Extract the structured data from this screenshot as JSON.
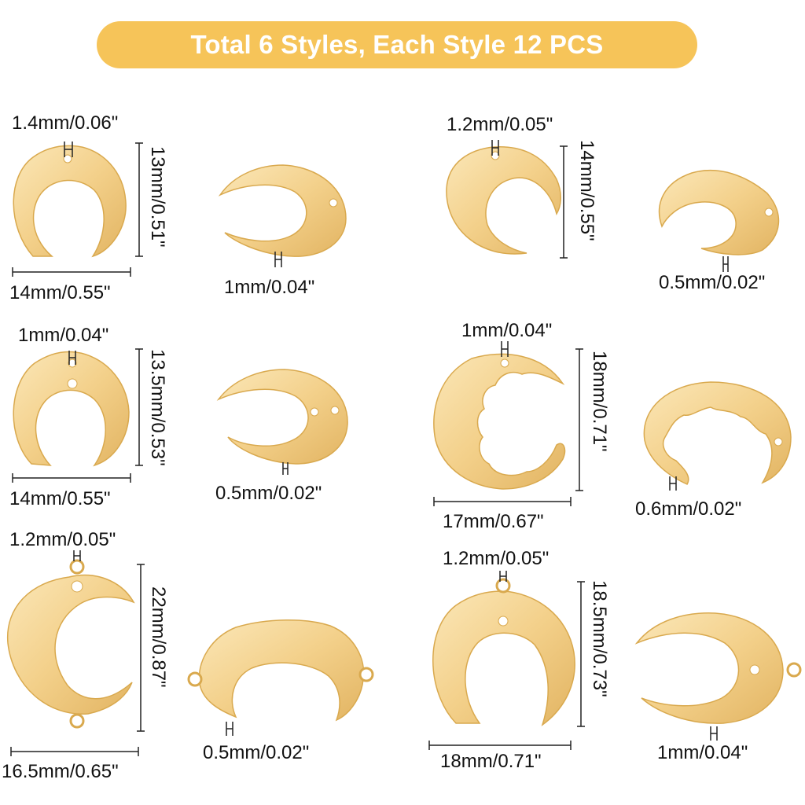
{
  "banner": {
    "title": "Total 6 Styles, Each Style 12 PCS"
  },
  "colors": {
    "banner": "#f6c459",
    "gold_light": "#f7dca2",
    "gold_dark": "#d9a94e",
    "line": "#222222"
  },
  "styles": [
    {
      "hole": "1.4mm/0.06\"",
      "height": "13mm/0.51\"",
      "width": "14mm/0.55\"",
      "thickness": "1mm/0.04\""
    },
    {
      "hole": "1.2mm/0.05\"",
      "height": "14mm/0.55\"",
      "thickness": "0.5mm/0.02\""
    },
    {
      "hole": "1mm/0.04\"",
      "height": "13.5mm/0.53\"",
      "width": "14mm/0.55\"",
      "thickness": "0.5mm/0.02\""
    },
    {
      "hole": "1mm/0.04\"",
      "height": "18mm/0.71\"",
      "width": "17mm/0.67\"",
      "thickness": "0.6mm/0.02\""
    },
    {
      "hole": "1.2mm/0.05\"",
      "height": "22mm/0.87\"",
      "width": "16.5mm/0.65\"",
      "thickness": "0.5mm/0.02\""
    },
    {
      "hole": "1.2mm/0.05\"",
      "height": "18.5mm/0.73\"",
      "width": "18mm/0.71\"",
      "thickness": "1mm/0.04\""
    }
  ]
}
